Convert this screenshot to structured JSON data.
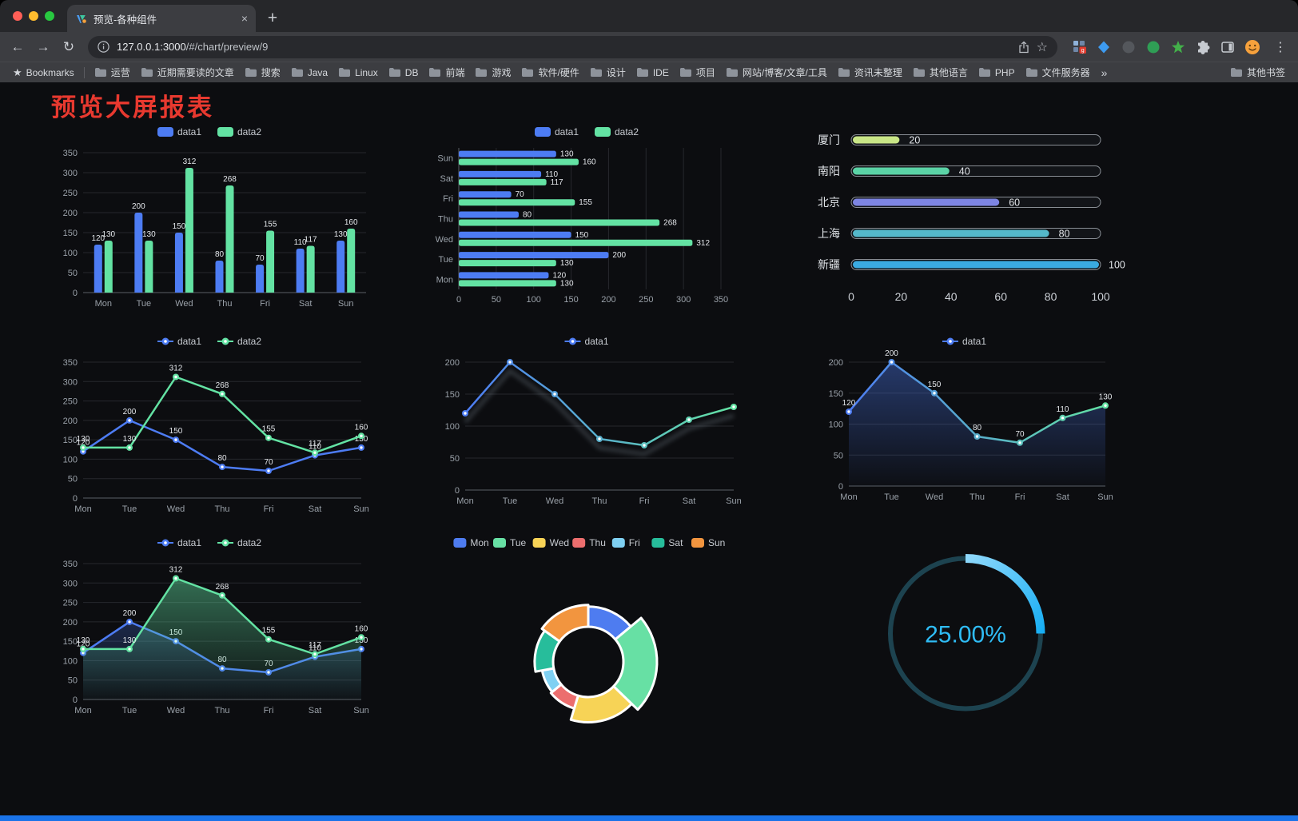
{
  "browser": {
    "tab_title": "预览-各种组件",
    "tab_close": "×",
    "new_tab_button": "+",
    "back": "←",
    "forward": "→",
    "reload": "↻",
    "menu": "⋮",
    "bookmark_star": "☆",
    "url": {
      "host": "127.0.0.1:3000",
      "path": "/#/chart/preview/9"
    },
    "bookmarks_label": "Bookmarks",
    "bookmark_folders": [
      "运营",
      "近期需要读的文章",
      "搜索",
      "Java",
      "Linux",
      "DB",
      "前端",
      "游戏",
      "软件/硬件",
      "设计",
      "IDE",
      "项目",
      "网站/博客/文章/工具",
      "资讯未整理",
      "其他语言",
      "PHP",
      "文件服务器"
    ],
    "bookmarks_overflow": "»",
    "other_bookmarks": "其他书签",
    "extensions": [
      {
        "name": "extension-grid-icon",
        "style": "grid",
        "color": "#8fb2d9",
        "badge_color": "#e23b2e",
        "badge": "g"
      },
      {
        "name": "extension-diamond-icon",
        "style": "diamond",
        "color": "#3d9bf0"
      },
      {
        "name": "extension-dark-circle-icon",
        "style": "circle",
        "color": "#54575c"
      },
      {
        "name": "extension-green-circle-icon",
        "style": "circle",
        "color": "#2f9e55"
      },
      {
        "name": "extension-green-star-icon",
        "style": "star",
        "color": "#43b04a"
      },
      {
        "name": "extensions-puzzle-icon",
        "style": "puzzle",
        "color": "#c7cbd1"
      },
      {
        "name": "sidebar-toggle-icon",
        "style": "sidebar",
        "color": "#c7cbd1"
      },
      {
        "name": "profile-avatar",
        "style": "face",
        "color": "#f6a13c"
      }
    ]
  },
  "page": {
    "title": "预览大屏报表",
    "accent_red": "#e8392f",
    "background": "#0c0d10",
    "bottom_bar_color": "#1a73e8"
  },
  "chart_data": [
    {
      "type": "bar",
      "categories": [
        "Mon",
        "Tue",
        "Wed",
        "Thu",
        "Fri",
        "Sat",
        "Sun"
      ],
      "series": [
        {
          "name": "data1",
          "color": "#4d7cf3",
          "values": [
            120,
            200,
            150,
            80,
            70,
            110,
            130
          ]
        },
        {
          "name": "data2",
          "color": "#63e2a3",
          "values": [
            130,
            130,
            312,
            268,
            155,
            117,
            160
          ]
        }
      ],
      "ylim": [
        0,
        350
      ],
      "ytick_step": 50,
      "legend_position": "top",
      "grid": true
    },
    {
      "type": "hbar",
      "categories": [
        "Mon",
        "Tue",
        "Wed",
        "Thu",
        "Fri",
        "Sat",
        "Sun"
      ],
      "series": [
        {
          "name": "data1",
          "color": "#4d7cf3",
          "values": [
            120,
            200,
            150,
            80,
            70,
            110,
            130
          ]
        },
        {
          "name": "data2",
          "color": "#63e2a3",
          "values": [
            130,
            130,
            312,
            268,
            155,
            117,
            160
          ]
        }
      ],
      "xlim": [
        0,
        350
      ],
      "xtick_step": 50,
      "legend_position": "top",
      "grid": true
    },
    {
      "type": "progress",
      "items": [
        {
          "label": "厦门",
          "value": 20,
          "color": "#c9e687"
        },
        {
          "label": "南阳",
          "value": 40,
          "color": "#5bd3a6"
        },
        {
          "label": "北京",
          "value": 60,
          "color": "#7d85e3"
        },
        {
          "label": "上海",
          "value": 80,
          "color": "#54b8ca"
        },
        {
          "label": "新疆",
          "value": 100,
          "color": "#3aabe2"
        }
      ],
      "xlim": [
        0,
        100
      ],
      "axis_ticks": [
        0,
        20,
        40,
        60,
        80,
        100
      ]
    },
    {
      "type": "line",
      "categories": [
        "Mon",
        "Tue",
        "Wed",
        "Thu",
        "Fri",
        "Sat",
        "Sun"
      ],
      "series": [
        {
          "name": "data1",
          "color": "#4d7cf3",
          "values": [
            120,
            200,
            150,
            80,
            70,
            110,
            130
          ]
        },
        {
          "name": "data2",
          "color": "#63e2a3",
          "values": [
            130,
            130,
            312,
            268,
            155,
            117,
            160
          ]
        }
      ],
      "ylim": [
        0,
        350
      ],
      "ytick_step": 50,
      "labels": true,
      "legend_position": "top"
    },
    {
      "type": "line",
      "categories": [
        "Mon",
        "Tue",
        "Wed",
        "Thu",
        "Fri",
        "Sat",
        "Sun"
      ],
      "series": [
        {
          "name": "data1",
          "gradient": [
            "#4d7cf3",
            "#63e2a3"
          ],
          "values": [
            120,
            200,
            150,
            80,
            70,
            110,
            130
          ]
        }
      ],
      "ylim": [
        0,
        200
      ],
      "ytick_step": 50,
      "labels": false,
      "shadow": true,
      "legend_position": "top"
    },
    {
      "type": "line",
      "categories": [
        "Mon",
        "Tue",
        "Wed",
        "Thu",
        "Fri",
        "Sat",
        "Sun"
      ],
      "series": [
        {
          "name": "data1",
          "gradient": [
            "#4d7cf3",
            "#63e2a3"
          ],
          "area": true,
          "area_opacity": 0.4,
          "values": [
            120,
            200,
            150,
            80,
            70,
            110,
            130
          ]
        }
      ],
      "ylim": [
        0,
        200
      ],
      "ytick_step": 50,
      "labels": true,
      "legend_position": "top"
    },
    {
      "type": "line",
      "categories": [
        "Mon",
        "Tue",
        "Wed",
        "Thu",
        "Fri",
        "Sat",
        "Sun"
      ],
      "series": [
        {
          "name": "data1",
          "color": "#4d7cf3",
          "area": true,
          "area_opacity": 0.25,
          "values": [
            120,
            200,
            150,
            80,
            70,
            110,
            130
          ]
        },
        {
          "name": "data2",
          "color": "#63e2a3",
          "area": true,
          "area_opacity": 0.45,
          "values": [
            130,
            130,
            312,
            268,
            155,
            117,
            160
          ]
        }
      ],
      "ylim": [
        0,
        350
      ],
      "ytick_step": 50,
      "labels": true,
      "legend_position": "top"
    },
    {
      "type": "donut",
      "rose": true,
      "inner_radius": 44,
      "outer_radius": 86,
      "items": [
        {
          "name": "Mon",
          "value": 120,
          "color": "#4e7cf0"
        },
        {
          "name": "Tue",
          "value": 200,
          "color": "#67e0a4"
        },
        {
          "name": "Wed",
          "value": 150,
          "color": "#f7d356"
        },
        {
          "name": "Thu",
          "value": 80,
          "color": "#ec6e6e"
        },
        {
          "name": "Fri",
          "value": 70,
          "color": "#7fd0f2"
        },
        {
          "name": "Sat",
          "value": 110,
          "color": "#27bd9b"
        },
        {
          "name": "Sun",
          "value": 130,
          "color": "#f2953f"
        }
      ],
      "legend_position": "top"
    },
    {
      "type": "gauge",
      "value": 25,
      "label": "25.00%",
      "color": "#2fbcf5",
      "track_color": "#1d4350",
      "gradient": [
        "#8fd8fb",
        "#17aef4"
      ]
    }
  ]
}
